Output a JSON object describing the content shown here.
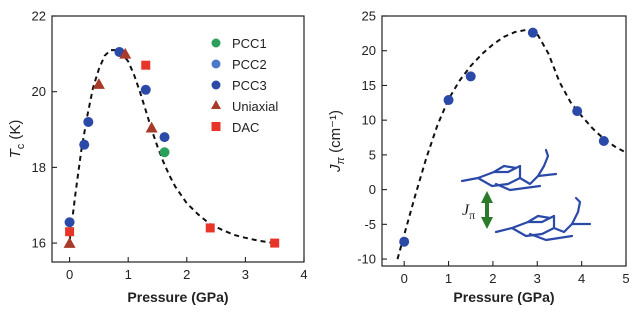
{
  "chart_data": [
    {
      "type": "scatter",
      "title": "",
      "xlabel": "Pressure (GPa)",
      "ylabel": "T_c (K)",
      "ylabel_main": "T",
      "ylabel_sub": "c",
      "ylabel_unit": " (K)",
      "xlim": [
        -0.3,
        4.0
      ],
      "ylim": [
        15.5,
        22.0
      ],
      "xticks": [
        0,
        1,
        2,
        3,
        4
      ],
      "yticks": [
        16,
        18,
        20,
        22
      ],
      "xtick_labels": [
        "0",
        "1",
        "2",
        "3",
        "4"
      ],
      "ytick_labels": [
        "16",
        "18",
        "20",
        "22"
      ],
      "grid": false,
      "legend_position": "top-right",
      "series": [
        {
          "name": "PCC1",
          "marker": "circle",
          "color": "#2ca05a",
          "x": [
            1.62
          ],
          "y": [
            18.4
          ]
        },
        {
          "name": "PCC2",
          "marker": "circle",
          "color": "#4b78c8",
          "x": [],
          "y": []
        },
        {
          "name": "PCC3",
          "marker": "circle",
          "color": "#2b4aa8",
          "x": [
            0.0,
            0.25,
            0.32,
            0.85,
            1.3,
            1.62
          ],
          "y": [
            16.55,
            18.6,
            19.2,
            21.05,
            20.05,
            18.8
          ]
        },
        {
          "name": "Uniaxial",
          "marker": "triangle",
          "color": "#a83a2a",
          "x": [
            0.0,
            0.5,
            0.95,
            1.4
          ],
          "y": [
            16.0,
            20.2,
            21.0,
            19.05
          ]
        },
        {
          "name": "DAC",
          "marker": "square",
          "color": "#e8352a",
          "x": [
            0.0,
            1.3,
            2.4,
            3.5
          ],
          "y": [
            16.3,
            20.7,
            16.4,
            16.0
          ]
        }
      ],
      "fit_curve": {
        "style": "dashed",
        "color": "#111111",
        "x": [
          0.0,
          0.1,
          0.2,
          0.3,
          0.4,
          0.5,
          0.6,
          0.7,
          0.8,
          0.9,
          1.0,
          1.1,
          1.2,
          1.3,
          1.4,
          1.5,
          1.6,
          1.7,
          1.8,
          2.0,
          2.2,
          2.4,
          2.6,
          2.8,
          3.0,
          3.2,
          3.4,
          3.5
        ],
        "y": [
          16.05,
          17.3,
          18.45,
          19.35,
          20.1,
          20.6,
          20.95,
          21.1,
          21.1,
          21.0,
          20.8,
          20.45,
          20.0,
          19.5,
          19.0,
          18.55,
          18.15,
          17.8,
          17.5,
          17.05,
          16.75,
          16.5,
          16.35,
          16.22,
          16.14,
          16.07,
          16.02,
          16.0
        ]
      }
    },
    {
      "type": "scatter",
      "title": "",
      "xlabel": "Pressure (GPa)",
      "ylabel": "Jπ (cm⁻¹)",
      "ylabel_main": "J",
      "ylabel_sub": "π",
      "ylabel_unit": " (cm⁻¹)",
      "xlim": [
        -0.5,
        5.0
      ],
      "ylim": [
        -11.0,
        25.0
      ],
      "xticks": [
        0,
        1,
        2,
        3,
        4,
        5
      ],
      "yticks": [
        -10,
        -5,
        0,
        5,
        10,
        15,
        20,
        25
      ],
      "xtick_labels": [
        "0",
        "1",
        "2",
        "3",
        "4",
        "5"
      ],
      "ytick_labels": [
        "-10",
        "-5",
        "0",
        "5",
        "10",
        "15",
        "20",
        "25"
      ],
      "grid": false,
      "series": [
        {
          "name": "",
          "marker": "circle",
          "color": "#2b4aa8",
          "x": [
            0.0,
            1.0,
            1.5,
            2.9,
            3.9,
            4.5
          ],
          "y": [
            -7.5,
            12.9,
            16.3,
            22.6,
            11.3,
            7.0
          ]
        }
      ],
      "fit_curve": {
        "style": "dashed",
        "color": "#111111",
        "x": [
          -0.15,
          0.0,
          0.25,
          0.5,
          0.75,
          1.0,
          1.25,
          1.5,
          1.75,
          2.0,
          2.25,
          2.5,
          2.75,
          3.0,
          3.25,
          3.5,
          3.75,
          4.0,
          4.25,
          4.5,
          4.75,
          4.95
        ],
        "y": [
          -10.0,
          -6.5,
          -0.8,
          4.6,
          9.3,
          13.0,
          15.7,
          17.8,
          19.5,
          20.9,
          22.0,
          22.7,
          23.0,
          22.4,
          19.6,
          15.5,
          12.6,
          10.6,
          8.8,
          7.3,
          6.2,
          5.5
        ]
      },
      "annotation": {
        "label_main": "J",
        "label_sub": "π",
        "arrow_color": "#2a7a2a",
        "molecule_color": "#2b4aa8"
      }
    }
  ]
}
